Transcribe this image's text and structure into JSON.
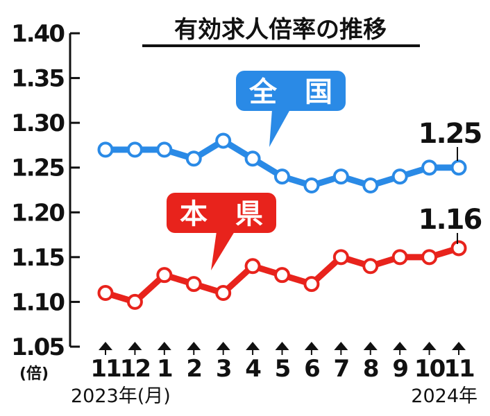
{
  "chart_data": {
    "type": "line",
    "title": "有効求人倍率の推移",
    "ylabel": "(倍)",
    "ylim": [
      1.05,
      1.4
    ],
    "yticks": [
      "1.40",
      "1.35",
      "1.30",
      "1.25",
      "1.20",
      "1.15",
      "1.10",
      "1.05"
    ],
    "categories": [
      "11",
      "12",
      "1",
      "2",
      "3",
      "4",
      "5",
      "6",
      "7",
      "8",
      "9",
      "10",
      "11"
    ],
    "x_start_label": "2023年(月)",
    "x_end_label": "2024年",
    "grid": false,
    "series": [
      {
        "name": "全　国",
        "color": "#2a8ae6",
        "values": [
          1.27,
          1.27,
          1.27,
          1.26,
          1.28,
          1.26,
          1.24,
          1.23,
          1.24,
          1.23,
          1.24,
          1.25,
          1.25
        ],
        "end_label": "1.25"
      },
      {
        "name": "本　県",
        "color": "#e8231c",
        "values": [
          1.11,
          1.1,
          1.13,
          1.12,
          1.11,
          1.14,
          1.13,
          1.12,
          1.15,
          1.14,
          1.15,
          1.15,
          1.16
        ],
        "end_label": "1.16"
      }
    ]
  }
}
